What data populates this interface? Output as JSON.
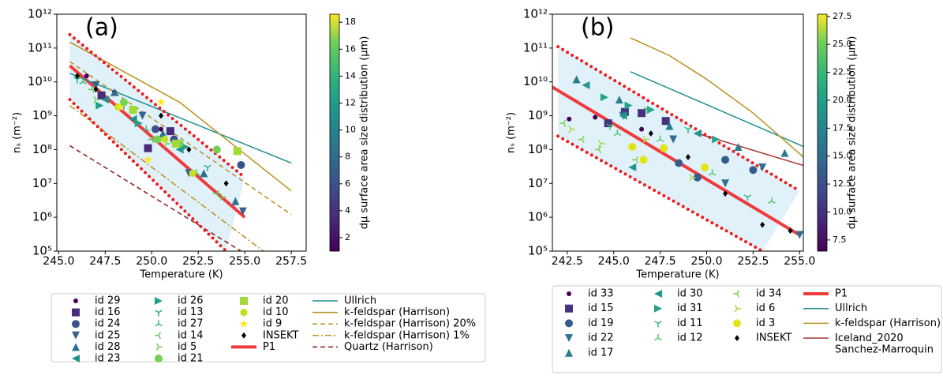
{
  "chart_data": [
    {
      "type": "scatter",
      "title": "(a)",
      "x_label": "Temperature (K)",
      "y_label": "nₛ (m⁻²)",
      "yscale": "log",
      "xlim": [
        244.9,
        258.3
      ],
      "ylim": [
        100000,
        1000000000000
      ],
      "xticks": [
        {
          "value": 245,
          "label": "245.0"
        },
        {
          "value": 247.5,
          "label": "247.5"
        },
        {
          "value": 250,
          "label": "250.0"
        },
        {
          "value": 252.5,
          "label": "252.5"
        },
        {
          "value": 255,
          "label": "255.0"
        },
        {
          "value": 257.5,
          "label": "257.5"
        }
      ],
      "yticks": [
        {
          "value": 100000,
          "label": "10⁵"
        },
        {
          "value": 1000000,
          "label": "10⁶"
        },
        {
          "value": 10000000,
          "label": "10⁷"
        },
        {
          "value": 100000000,
          "label": "10⁸"
        },
        {
          "value": 1000000000,
          "label": "10⁹"
        },
        {
          "value": 10000000000,
          "label": "10¹⁰"
        },
        {
          "value": 100000000000,
          "label": "10¹¹"
        },
        {
          "value": 1000000000000,
          "label": "10¹²"
        }
      ],
      "colorbar": {
        "label": "dμ surface area size distribution (μm)",
        "colormap": "viridis",
        "lim": [
          1.0,
          18.6
        ],
        "ticks": [
          2,
          4,
          6,
          8,
          10,
          12,
          14,
          16,
          18
        ]
      },
      "legend": {
        "columns": 4
      },
      "series": [
        {
          "name": "id 29",
          "marker": "o",
          "size": 3,
          "color": "#440154",
          "x": [
            246.5,
            248.0,
            250.5
          ],
          "values": [
            15000000000,
            5000000000,
            400000000
          ]
        },
        {
          "name": "id 16",
          "marker": "s",
          "color": "#472d7b",
          "x": [
            247.3,
            249.8,
            251.0
          ],
          "values": [
            4000000000,
            110000000,
            350000000
          ]
        },
        {
          "name": "id 24",
          "marker": "o",
          "color": "#3b528b",
          "x": [
            250.2,
            251.2,
            254.8
          ],
          "values": [
            400000000,
            200000000,
            35000000
          ]
        },
        {
          "name": "id 25",
          "marker": "v",
          "color": "#33638d",
          "x": [
            247.0,
            249.5,
            252.0,
            254.9
          ],
          "values": [
            8000000000,
            1000000000,
            20000000,
            1500000
          ]
        },
        {
          "name": "id 28",
          "marker": "^",
          "color": "#2c728e",
          "x": [
            248.0,
            250.6,
            252.8,
            254.5
          ],
          "values": [
            5000000000,
            300000000,
            20000000,
            3000000
          ]
        },
        {
          "name": "id 23",
          "marker": "<",
          "color": "#21918c",
          "x": [
            247.5,
            249.0,
            251.5
          ],
          "values": [
            3000000000,
            800000000,
            100000000
          ]
        },
        {
          "name": "id 26",
          "marker": ">",
          "color": "#1f9e89",
          "x": [
            247.2,
            249.3,
            251.8
          ],
          "values": [
            2000000000,
            600000000,
            120000000
          ]
        },
        {
          "name": "id 13",
          "marker": "1",
          "color": "#27ad81",
          "x": [
            246.0,
            248.5,
            253.0
          ],
          "values": [
            12000000000,
            2000000000,
            30000000
          ]
        },
        {
          "name": "id 27",
          "marker": "2",
          "color": "#3dbc74",
          "x": [
            246.3,
            249.7,
            252.4
          ],
          "values": [
            10000000000,
            400000000,
            20000000
          ]
        },
        {
          "name": "id 14",
          "marker": "3",
          "color": "#5ec962",
          "x": [
            246.8,
            250.0,
            253.5
          ],
          "values": [
            6000000000,
            200000000,
            5000000
          ]
        },
        {
          "name": "id 5",
          "marker": "4",
          "color": "#7ad151",
          "x": [
            247.0,
            250.8,
            253.8
          ],
          "values": [
            3000000000,
            150000000,
            4000000
          ]
        },
        {
          "name": "id 21",
          "marker": "o",
          "color": "#75d054",
          "x": [
            248.5,
            250.3,
            251.5,
            253.5
          ],
          "values": [
            2500000000,
            200000000,
            150000000,
            100000000
          ]
        },
        {
          "name": "id 20",
          "marker": "s",
          "color": "#a0da39",
          "x": [
            249.0,
            251.3,
            254.6
          ],
          "values": [
            1500000000,
            150000000,
            90000000
          ]
        },
        {
          "name": "id 10",
          "marker": "h",
          "color": "#c2df23",
          "x": [
            248.2,
            250.7,
            252.2
          ],
          "values": [
            1800000000,
            200000000,
            20000000
          ]
        },
        {
          "name": "id 9",
          "marker": "*",
          "color": "#fde725",
          "x": [
            248.3,
            249.8,
            250.5
          ],
          "values": [
            1800000000,
            50000000,
            2500000000
          ]
        },
        {
          "name": "INSEKT",
          "marker": "D",
          "size": 3,
          "color": "#000000",
          "x": [
            246.0,
            247.0,
            250.5,
            252.0,
            254.0
          ],
          "values": [
            15000000000,
            6000000000,
            1000000000,
            100000000,
            10000000
          ]
        },
        {
          "name": "P1",
          "line": "solid",
          "width": 4,
          "color": "#ee3b3b",
          "x": [
            245.6,
            255.0
          ],
          "values": [
            30000000000,
            1000000
          ]
        },
        {
          "name": "Ullrich",
          "line": "solid",
          "width": 1.5,
          "color": "#1f8f8f",
          "x": [
            245.6,
            257.5
          ],
          "values": [
            18000000000,
            40000000
          ]
        },
        {
          "name": "k-feldspar (Harrison)",
          "line": "solid",
          "width": 1.5,
          "color": "#b8901c",
          "x": [
            245.6,
            251.5,
            257.5
          ],
          "values": [
            150000000000,
            2500000000,
            6000000
          ]
        },
        {
          "name": "k-feldspar (Harrison) 20%",
          "line": "dashed",
          "width": 1.5,
          "color": "#b8901c",
          "x": [
            245.6,
            257.5
          ],
          "values": [
            40000000000,
            1200000
          ]
        },
        {
          "name": "k-feldspar (Harrison) 1%",
          "line": "dashdot",
          "width": 1.5,
          "color": "#b8901c",
          "x": [
            245.6,
            256.0
          ],
          "values": [
            2000000000,
            100000
          ]
        },
        {
          "name": "Quartz (Harrison)",
          "line": "dashed",
          "width": 1.5,
          "color": "#8b1a1a",
          "x": [
            245.6,
            254.8
          ],
          "values": [
            130000000,
            100000
          ]
        },
        {
          "line": "dotted",
          "width": 4,
          "color": "#ee1c1c",
          "x": [
            245.6,
            255.0
          ],
          "values": [
            250000000000,
            15000000
          ]
        },
        {
          "line": "dotted",
          "width": 4,
          "color": "#ee1c1c",
          "x": [
            245.6,
            254.0
          ],
          "values": [
            3000000000,
            100000
          ]
        }
      ]
    },
    {
      "type": "scatter",
      "title": "(b)",
      "x_label": "Temperature (K)",
      "y_label": "nₛ (m⁻²)",
      "yscale": "log",
      "xlim": [
        241.7,
        255.2
      ],
      "ylim": [
        100000,
        1000000000000
      ],
      "xticks": [
        {
          "value": 242.5,
          "label": "242.5"
        },
        {
          "value": 245,
          "label": "245.0"
        },
        {
          "value": 247.5,
          "label": "247.5"
        },
        {
          "value": 250,
          "label": "250.0"
        },
        {
          "value": 252.5,
          "label": "252.5"
        },
        {
          "value": 255,
          "label": "255.0"
        }
      ],
      "yticks": [
        {
          "value": 100000,
          "label": "10⁵"
        },
        {
          "value": 1000000,
          "label": "10⁶"
        },
        {
          "value": 10000000,
          "label": "10⁷"
        },
        {
          "value": 100000000,
          "label": "10⁸"
        },
        {
          "value": 1000000000,
          "label": "10⁹"
        },
        {
          "value": 10000000000,
          "label": "10¹⁰"
        },
        {
          "value": 100000000000,
          "label": "10¹¹"
        },
        {
          "value": 1000000000000,
          "label": "10¹²"
        }
      ],
      "colorbar": {
        "label": "dμ surface area size distribution (μm)",
        "colormap": "viridis",
        "lim": [
          6.5,
          27.7
        ],
        "ticks": [
          7.5,
          {
            "value": 10,
            "label": "10.0"
          },
          12.5,
          {
            "value": 15,
            "label": "15.0"
          },
          17.5,
          {
            "value": 20,
            "label": "20.0"
          },
          22.5,
          {
            "value": 25,
            "label": "25.0"
          },
          27.5
        ]
      },
      "legend": {
        "columns": 4
      },
      "series": [
        {
          "name": "id 33",
          "marker": "o",
          "size": 3,
          "color": "#440154",
          "x": [
            242.6,
            244.0,
            246.5
          ],
          "values": [
            800000000,
            900000000,
            400000000
          ]
        },
        {
          "name": "id 15",
          "marker": "s",
          "color": "#46327e",
          "x": [
            244.7,
            245.6,
            246.5,
            247.8
          ],
          "values": [
            600000000,
            1300000000,
            1200000000,
            700000000
          ]
        },
        {
          "name": "id 19",
          "marker": "o",
          "color": "#365c8d",
          "x": [
            248.5,
            249.5,
            251.0,
            252.5
          ],
          "values": [
            40000000,
            15000000,
            50000000,
            25000000
          ]
        },
        {
          "name": "id 22",
          "marker": "v",
          "color": "#2e6e8e",
          "x": [
            245.5,
            248.2,
            251.0,
            253.0,
            255.0
          ],
          "values": [
            1000000000,
            200000000,
            10000000,
            30000000,
            300000
          ]
        },
        {
          "name": "id 17",
          "marker": "^",
          "color": "#277f8e",
          "x": [
            243.0,
            245.3,
            248.0,
            251.7,
            254.2
          ],
          "values": [
            12000000000,
            3000000000,
            500000000,
            120000000,
            80000000
          ]
        },
        {
          "name": "id 30",
          "marker": "<",
          "color": "#1f978b",
          "x": [
            243.5,
            245.5,
            246.0,
            249.5
          ],
          "values": [
            8000000000,
            1000000000,
            30000000,
            300000000
          ]
        },
        {
          "name": "id 31",
          "marker": ">",
          "color": "#20a386",
          "x": [
            244.5,
            245.8,
            247.0,
            250.5
          ],
          "values": [
            3500000000,
            2000000000,
            1500000000,
            200000000
          ]
        },
        {
          "name": "id 11",
          "marker": "1",
          "color": "#35b779",
          "x": [
            244.8,
            246.8,
            249.0,
            252.2
          ],
          "values": [
            500000000,
            1500000000,
            400000000,
            4000000
          ]
        },
        {
          "name": "id 12",
          "marker": "2",
          "color": "#54c568",
          "x": [
            245.2,
            247.5,
            250.3,
            253.5
          ],
          "values": [
            300000000,
            200000000,
            20000000,
            3000000
          ]
        },
        {
          "name": "id 34",
          "marker": "3",
          "color": "#7ad151",
          "x": [
            242.3,
            243.3,
            244.2,
            246.2
          ],
          "values": [
            600000000,
            200000000,
            100000000,
            50000000
          ]
        },
        {
          "name": "id 6",
          "marker": "4",
          "color": "#a5db36",
          "x": [
            242.7,
            244.3,
            246.7,
            249.2
          ],
          "values": [
            400000000,
            150000000,
            200000000,
            15000000
          ]
        },
        {
          "name": "id 3",
          "marker": "o",
          "color": "#e2e418",
          "x": [
            246.0,
            246.6,
            247.7,
            249.9
          ],
          "values": [
            120000000,
            50000000,
            110000000,
            30000000
          ]
        },
        {
          "name": "INSEKT",
          "marker": "D",
          "size": 3,
          "color": "#000000",
          "x": [
            247.0,
            249.0,
            251.0,
            253.0,
            254.5
          ],
          "values": [
            300000000,
            60000000,
            5000000,
            600000,
            400000
          ]
        },
        {
          "name": "P1",
          "line": "solid",
          "width": 4,
          "color": "#ee3b3b",
          "x": [
            241.7,
            255.0
          ],
          "values": [
            7000000000,
            300000
          ]
        },
        {
          "name": "Ullrich",
          "line": "solid",
          "width": 1.5,
          "color": "#1f8f8f",
          "x": [
            245.9,
            256.0
          ],
          "values": [
            20000000000,
            80000000
          ]
        },
        {
          "name": "k-feldspar (Harrison)",
          "line": "solid",
          "width": 1.5,
          "color": "#b8901c",
          "x": [
            245.9,
            248.0,
            250.0,
            252.5,
            256.0
          ],
          "values": [
            200000000000,
            60000000000,
            12000000000,
            1200000000,
            25000000
          ]
        },
        {
          "name": "Iceland_2020\nSanchez-Marroquin",
          "line": "solid",
          "width": 1.5,
          "color": "#a83232",
          "x": [
            249.5,
            256.0
          ],
          "values": [
            300000000,
            25000000
          ]
        },
        {
          "line": "dotted",
          "width": 4,
          "color": "#ee1c1c",
          "x": [
            242.0,
            255.0
          ],
          "values": [
            110000000000,
            6000000
          ]
        },
        {
          "line": "dotted",
          "width": 4,
          "color": "#ee1c1c",
          "x": [
            242.0,
            253.0
          ],
          "values": [
            250000000,
            100000
          ]
        }
      ]
    }
  ]
}
